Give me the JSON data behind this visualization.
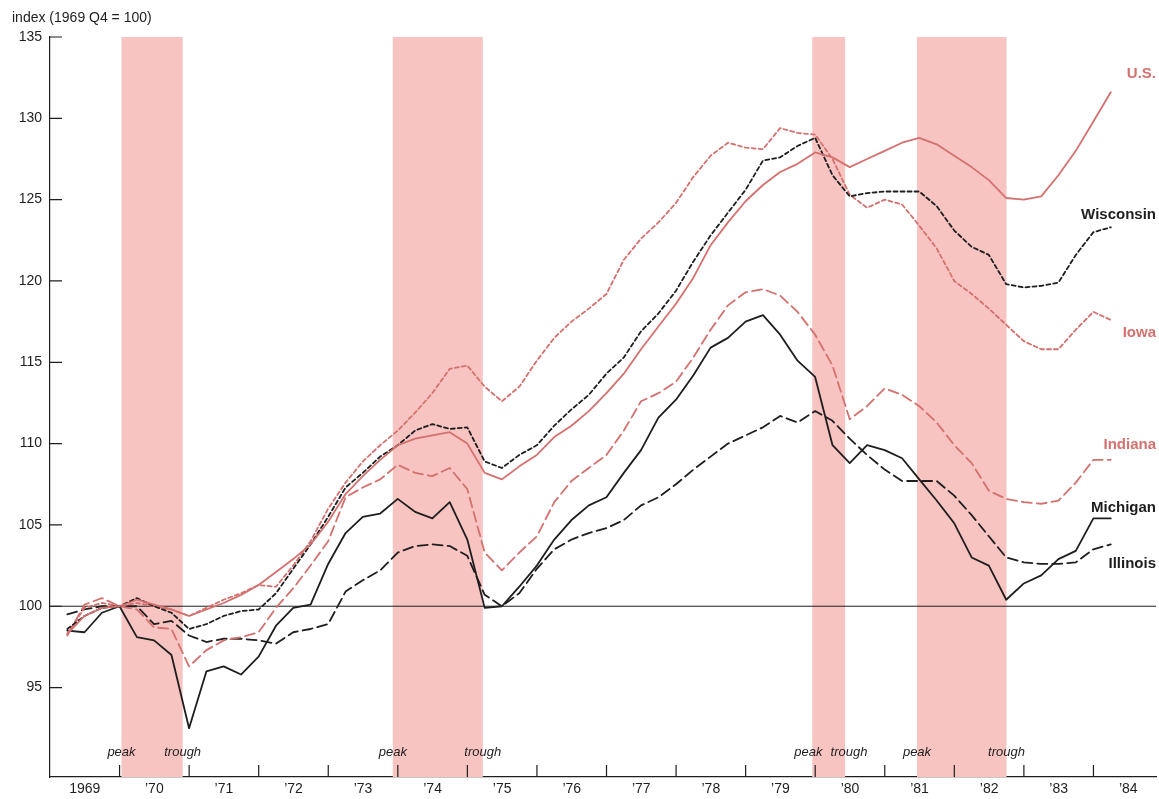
{
  "chart_data": {
    "type": "line",
    "ylabel": "index (1969 Q4 = 100)",
    "x": [
      "1969-03-31",
      "1969-06-30",
      "1969-09-30",
      "1969-12-31",
      "1970-03-31",
      "1970-06-30",
      "1970-09-30",
      "1970-12-31",
      "1971-03-31",
      "1971-06-30",
      "1971-09-30",
      "1971-12-31",
      "1972-03-31",
      "1972-06-30",
      "1972-09-30",
      "1972-12-31",
      "1973-03-31",
      "1973-06-30",
      "1973-09-30",
      "1973-12-31",
      "1974-03-31",
      "1974-06-30",
      "1974-09-30",
      "1974-12-31",
      "1975-03-31",
      "1975-06-30",
      "1975-09-30",
      "1975-12-31",
      "1976-03-31",
      "1976-06-30",
      "1976-09-30",
      "1976-12-31",
      "1977-03-31",
      "1977-06-30",
      "1977-09-30",
      "1977-12-31",
      "1978-03-31",
      "1978-06-30",
      "1978-09-30",
      "1978-12-31",
      "1979-03-31",
      "1979-06-30",
      "1979-09-30",
      "1979-12-31",
      "1980-03-31",
      "1980-06-30",
      "1980-09-30",
      "1980-12-31",
      "1981-03-31",
      "1981-06-30",
      "1981-09-30",
      "1981-12-31",
      "1982-03-31",
      "1982-06-30",
      "1982-09-30",
      "1982-12-31",
      "1983-03-31",
      "1983-06-30",
      "1983-09-30",
      "1983-12-31",
      "1984-03-31"
    ],
    "series": [
      {
        "name": "U.S.",
        "color": "#d4706e",
        "line_style": "solid",
        "values": [
          98.3,
          99.4,
          99.9,
          100.0,
          100.4,
          100.1,
          99.8,
          99.4,
          99.8,
          100.2,
          100.7,
          101.3,
          102.1,
          102.9,
          103.8,
          105.2,
          106.9,
          108.0,
          109.0,
          109.9,
          110.3,
          110.5,
          110.7,
          110.0,
          108.2,
          107.8,
          108.6,
          109.3,
          110.4,
          111.1,
          112.0,
          113.1,
          114.3,
          115.8,
          117.2,
          118.6,
          120.2,
          122.2,
          123.6,
          124.9,
          125.9,
          126.7,
          127.2,
          127.9,
          127.6,
          127.0,
          127.5,
          128.0,
          128.5,
          128.8,
          128.4,
          127.7,
          127.0,
          126.2,
          125.1,
          125.0,
          125.2,
          126.5,
          128.0,
          129.8,
          131.6
        ]
      },
      {
        "name": "Wisconsin",
        "color": "#1e1e1e",
        "line_style": "dotted",
        "values": [
          98.6,
          99.4,
          99.9,
          100.0,
          100.5,
          100.0,
          99.6,
          98.6,
          98.9,
          99.4,
          99.7,
          99.8,
          100.8,
          102.3,
          103.8,
          105.5,
          107.3,
          108.2,
          109.2,
          109.9,
          110.8,
          111.2,
          110.9,
          111.0,
          108.9,
          108.5,
          109.3,
          109.9,
          111.1,
          112.1,
          113.0,
          114.3,
          115.3,
          116.9,
          118.0,
          119.4,
          121.2,
          122.8,
          124.2,
          125.6,
          127.4,
          127.6,
          128.3,
          128.8,
          126.5,
          125.2,
          125.4,
          125.5,
          125.5,
          125.5,
          124.6,
          123.1,
          122.1,
          121.6,
          119.8,
          119.6,
          119.7,
          119.9,
          121.6,
          123.0,
          123.3
        ]
      },
      {
        "name": "Iowa",
        "color": "#d4706e",
        "line_style": "dotted",
        "values": [
          98.3,
          99.9,
          100.2,
          100.0,
          100.2,
          100.0,
          99.8,
          99.4,
          99.9,
          100.4,
          100.8,
          101.3,
          101.2,
          102.5,
          104.0,
          106.0,
          107.6,
          108.9,
          109.9,
          110.8,
          111.9,
          113.1,
          114.6,
          114.8,
          113.5,
          112.6,
          113.5,
          115.1,
          116.5,
          117.5,
          118.3,
          119.2,
          121.3,
          122.6,
          123.6,
          124.8,
          126.4,
          127.7,
          128.5,
          128.2,
          128.1,
          129.4,
          129.1,
          129.0,
          127.5,
          125.3,
          124.5,
          125.0,
          124.7,
          123.4,
          122.0,
          120.0,
          119.2,
          118.3,
          117.3,
          116.3,
          115.8,
          115.8,
          117.0,
          118.1,
          117.6
        ]
      },
      {
        "name": "Indiana",
        "color": "#d4706e",
        "line_style": "dashed",
        "values": [
          98.2,
          100.1,
          100.5,
          100.0,
          99.8,
          98.7,
          98.6,
          96.3,
          97.3,
          97.9,
          98.1,
          98.4,
          99.9,
          101.1,
          102.5,
          104.0,
          106.7,
          107.3,
          107.8,
          108.7,
          108.2,
          108.0,
          108.5,
          107.2,
          103.3,
          102.2,
          103.3,
          104.3,
          106.4,
          107.7,
          108.5,
          109.3,
          110.8,
          112.6,
          113.1,
          113.8,
          115.3,
          117.0,
          118.5,
          119.3,
          119.5,
          119.1,
          118.1,
          116.7,
          114.8,
          111.5,
          112.3,
          113.4,
          113.0,
          112.3,
          111.3,
          109.9,
          108.8,
          107.1,
          106.6,
          106.4,
          106.3,
          106.5,
          107.6,
          109.0,
          109.0
        ]
      },
      {
        "name": "Michigan",
        "color": "#1e1e1e",
        "line_style": "solid",
        "values": [
          98.5,
          98.4,
          99.6,
          100.0,
          98.1,
          97.9,
          97.0,
          92.5,
          96.0,
          96.3,
          95.8,
          96.9,
          98.8,
          99.9,
          100.1,
          102.6,
          104.5,
          105.5,
          105.7,
          106.6,
          105.8,
          105.4,
          106.4,
          104.1,
          99.9,
          100.0,
          101.2,
          102.5,
          104.1,
          105.3,
          106.2,
          106.7,
          108.2,
          109.6,
          111.6,
          112.7,
          114.2,
          115.9,
          116.5,
          117.5,
          117.9,
          116.7,
          115.1,
          114.1,
          109.9,
          108.8,
          109.9,
          109.6,
          109.1,
          107.8,
          106.5,
          105.1,
          103.0,
          102.5,
          100.4,
          101.4,
          101.9,
          102.9,
          103.4,
          105.4,
          105.4
        ]
      },
      {
        "name": "Illinois",
        "color": "#1e1e1e",
        "line_style": "dashed",
        "values": [
          99.5,
          99.8,
          100.0,
          100.0,
          100.0,
          98.9,
          99.1,
          98.2,
          97.8,
          98.0,
          98.0,
          97.9,
          97.7,
          98.4,
          98.6,
          98.9,
          100.9,
          101.6,
          102.2,
          103.3,
          103.7,
          103.8,
          103.7,
          103.1,
          100.7,
          100.0,
          100.8,
          102.3,
          103.5,
          104.1,
          104.5,
          104.8,
          105.3,
          106.2,
          106.7,
          107.5,
          108.4,
          109.2,
          110.0,
          110.5,
          111.0,
          111.7,
          111.3,
          112.0,
          111.4,
          110.3,
          109.3,
          108.4,
          107.7,
          107.7,
          107.7,
          106.8,
          105.6,
          104.3,
          103.0,
          102.7,
          102.6,
          102.6,
          102.7,
          103.5,
          103.8
        ]
      }
    ],
    "xlim": [
      "1969-01-01",
      "1984-11-25"
    ],
    "xticks": [
      {
        "value": "1969-07-01",
        "label": "1969"
      },
      {
        "value": "1970-01-01",
        "label": null
      },
      {
        "value": "1970-07-01",
        "label": "’70"
      },
      {
        "value": "1971-01-01",
        "label": null
      },
      {
        "value": "1971-07-01",
        "label": "’71"
      },
      {
        "value": "1972-01-01",
        "label": null
      },
      {
        "value": "1972-07-01",
        "label": "’72"
      },
      {
        "value": "1973-01-01",
        "label": null
      },
      {
        "value": "1973-07-01",
        "label": "’73"
      },
      {
        "value": "1974-01-01",
        "label": null
      },
      {
        "value": "1974-07-01",
        "label": "’74"
      },
      {
        "value": "1975-01-01",
        "label": null
      },
      {
        "value": "1975-07-01",
        "label": "’75"
      },
      {
        "value": "1976-01-01",
        "label": null
      },
      {
        "value": "1976-07-01",
        "label": "’76"
      },
      {
        "value": "1977-01-01",
        "label": null
      },
      {
        "value": "1977-07-01",
        "label": "’77"
      },
      {
        "value": "1978-01-01",
        "label": null
      },
      {
        "value": "1978-07-01",
        "label": "’78"
      },
      {
        "value": "1979-01-01",
        "label": null
      },
      {
        "value": "1979-07-01",
        "label": "’79"
      },
      {
        "value": "1980-01-01",
        "label": null
      },
      {
        "value": "1980-07-01",
        "label": "’80"
      },
      {
        "value": "1981-01-01",
        "label": null
      },
      {
        "value": "1981-07-01",
        "label": "’81"
      },
      {
        "value": "1982-01-01",
        "label": null
      },
      {
        "value": "1982-07-01",
        "label": "’82"
      },
      {
        "value": "1983-01-01",
        "label": null
      },
      {
        "value": "1983-07-01",
        "label": "’83"
      },
      {
        "value": "1984-01-01",
        "label": null
      },
      {
        "value": "1984-07-01",
        "label": "’84"
      }
    ],
    "ylim": [
      89.5,
      135
    ],
    "yticks": [
      95,
      100,
      105,
      110,
      115,
      120,
      125,
      130,
      135
    ],
    "ref_lines": [
      {
        "axis": "y",
        "value": 100,
        "color": "#1e1e1e"
      }
    ],
    "bands": [
      {
        "axis": "x",
        "from": "1970-01-11",
        "to": "1970-11-28",
        "color": "#f7c4c2"
      },
      {
        "axis": "x",
        "from": "1973-12-05",
        "to": "1975-03-21",
        "color": "#f7c4c2"
      },
      {
        "axis": "x",
        "from": "1979-12-16",
        "to": "1980-06-06",
        "color": "#f7c4c2"
      },
      {
        "axis": "x",
        "from": "1981-06-18",
        "to": "1982-10-01",
        "color": "#f7c4c2"
      }
    ],
    "annotations": [
      {
        "text": "peak",
        "x": "1970-01-11",
        "y": 91
      },
      {
        "text": "trough",
        "x": "1970-11-28",
        "y": 91
      },
      {
        "text": "peak",
        "x": "1973-12-05",
        "y": 91
      },
      {
        "text": "trough",
        "x": "1975-03-21",
        "y": 91
      },
      {
        "text": "peak",
        "x": "1979-12-16",
        "y": 91
      },
      {
        "text": "trough",
        "x": "1980-06-06",
        "y": 91
      },
      {
        "text": "peak",
        "x": "1981-06-18",
        "y": 91
      },
      {
        "text": "trough",
        "x": "1982-10-01",
        "y": 91
      }
    ],
    "grid": false,
    "legend": false,
    "marker": "none"
  }
}
